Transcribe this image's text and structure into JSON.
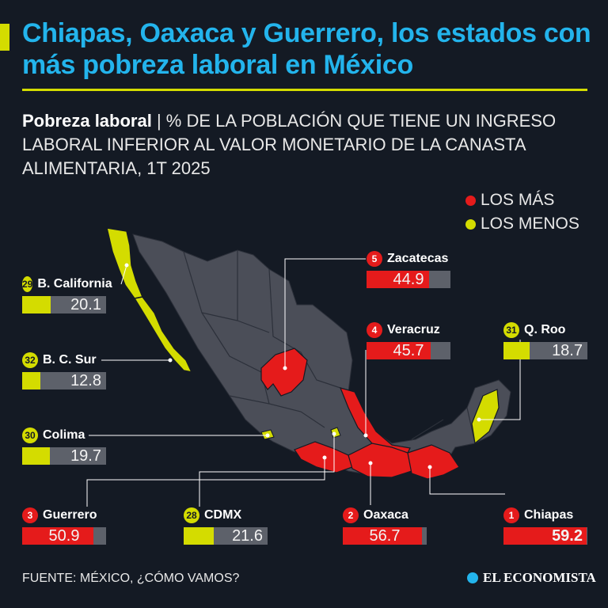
{
  "title": "Chiapas, Oaxaca y Guerrero, los estados con más pobreza laboral en México",
  "subtitle": {
    "bold": "Pobreza laboral",
    "separator": " | ",
    "text": "% DE LA POBLACIÓN QUE TIENE UN INGRESO LABORAL INFERIOR AL VALOR MONETARIO DE LA CANASTA ALIMENTARIA, 1T 2025"
  },
  "legend": [
    {
      "label": "LOS MÁS",
      "color": "#e51b1b"
    },
    {
      "label": "LOS MENOS",
      "color": "#d4dc00"
    }
  ],
  "colors": {
    "high": "#e51b1b",
    "low": "#d4dc00",
    "map": "#4b4e58",
    "bar_track": "#5d616a",
    "title": "#23b4ec"
  },
  "chart_data": {
    "type": "bar",
    "unit": "%",
    "xlim": [
      0,
      60
    ],
    "states": [
      {
        "rank": "29",
        "name": "B. California",
        "value": 20.1,
        "group": "low"
      },
      {
        "rank": "32",
        "name": "B. C. Sur",
        "value": 12.8,
        "group": "low"
      },
      {
        "rank": "30",
        "name": "Colima",
        "value": 19.7,
        "group": "low"
      },
      {
        "rank": "3",
        "name": "Guerrero",
        "value": 50.9,
        "group": "high"
      },
      {
        "rank": "28",
        "name": "CDMX",
        "value": 21.6,
        "group": "low"
      },
      {
        "rank": "2",
        "name": "Oaxaca",
        "value": 56.7,
        "group": "high"
      },
      {
        "rank": "1",
        "name": "Chiapas",
        "value": 59.2,
        "group": "high"
      },
      {
        "rank": "5",
        "name": "Zacatecas",
        "value": 44.9,
        "group": "high"
      },
      {
        "rank": "4",
        "name": "Veracruz",
        "value": 45.7,
        "group": "high"
      },
      {
        "rank": "31",
        "name": "Q. Roo",
        "value": 18.7,
        "group": "low"
      }
    ]
  },
  "footer": "FUENTE: MÉXICO, ¿CÓMO VAMOS?",
  "brand": "EL ECONOMISTA"
}
